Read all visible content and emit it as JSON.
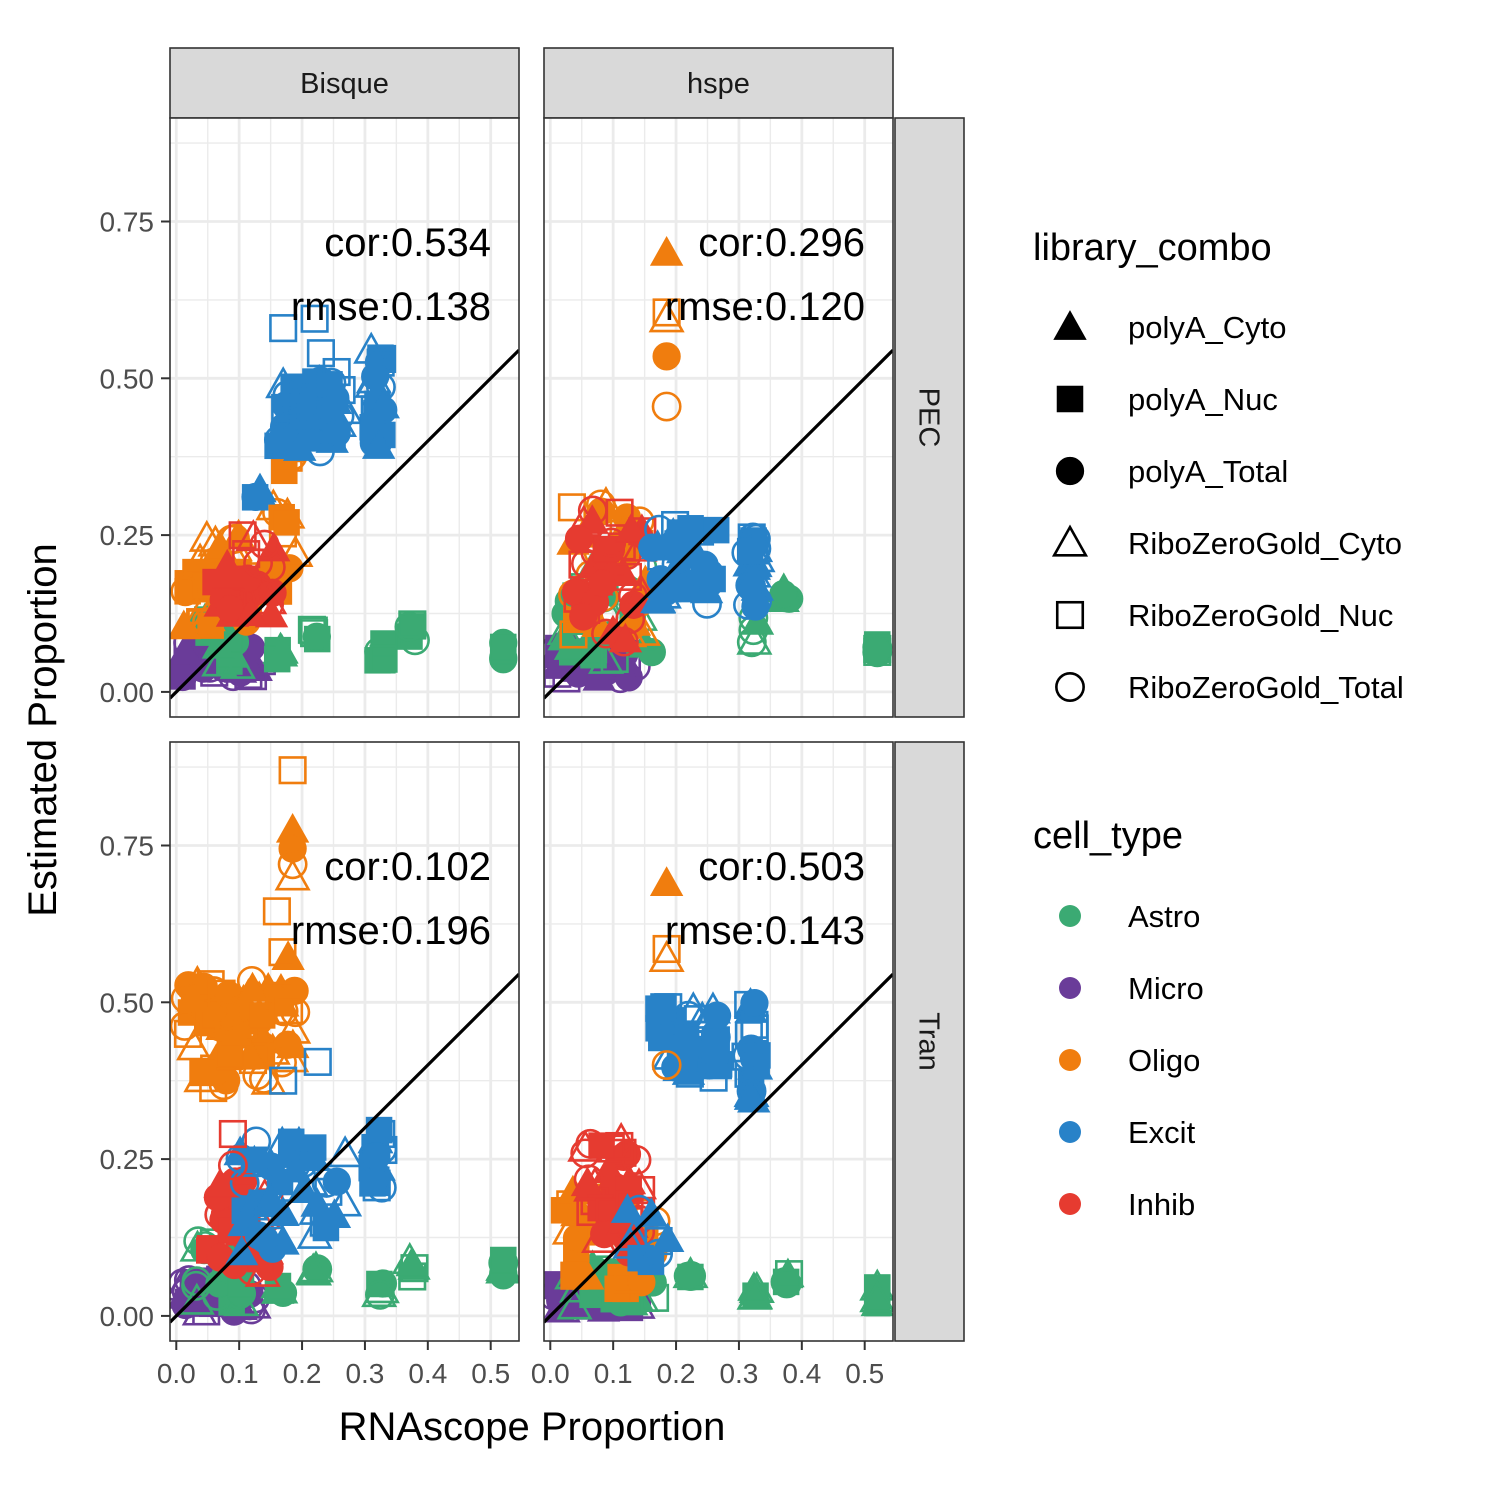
{
  "chart_data": {
    "type": "scatter",
    "xlabel": "RNAscope Proportion",
    "ylabel": "Estimated Proportion",
    "xlim": [
      -0.01,
      0.545
    ],
    "ylim": [
      -0.04,
      0.915
    ],
    "xticks": [
      "0.0",
      "0.1",
      "0.2",
      "0.3",
      "0.4",
      "0.5"
    ],
    "xtick_values": [
      0,
      0.1,
      0.2,
      0.3,
      0.4,
      0.5
    ],
    "yticks": [
      "0.00",
      "0.25",
      "0.50",
      "0.75"
    ],
    "ytick_values": [
      0,
      0.25,
      0.5,
      0.75
    ],
    "reference_line": "y = x",
    "grid": true,
    "facet_columns": [
      "Bisque",
      "hspe"
    ],
    "facet_rows": [
      "PEC",
      "Tran"
    ],
    "legend_placement": "right",
    "legends": {
      "shape": {
        "title": "library_combo",
        "entries": [
          {
            "label": "polyA_Cyto",
            "shape": "triangle",
            "filled": true
          },
          {
            "label": "polyA_Nuc",
            "shape": "square",
            "filled": true
          },
          {
            "label": "polyA_Total",
            "shape": "circle",
            "filled": true
          },
          {
            "label": "RiboZeroGold_Cyto",
            "shape": "triangle",
            "filled": false
          },
          {
            "label": "RiboZeroGold_Nuc",
            "shape": "square",
            "filled": false
          },
          {
            "label": "RiboZeroGold_Total",
            "shape": "circle",
            "filled": false
          }
        ]
      },
      "color": {
        "title": "cell_type",
        "entries": [
          {
            "label": "Astro",
            "color": "#3BAA73"
          },
          {
            "label": "Micro",
            "color": "#6A3C99"
          },
          {
            "label": "Oligo",
            "color": "#F07D0E"
          },
          {
            "label": "Excit",
            "color": "#2882C8"
          },
          {
            "label": "Inhib",
            "color": "#E63B30"
          }
        ]
      }
    },
    "panels": [
      {
        "method": "Bisque",
        "dataset": "PEC",
        "cor": "cor:0.534",
        "rmse": "rmse:0.138",
        "clusters": [
          {
            "cell_type": "Micro",
            "x": [
              0.005,
              0.14
            ],
            "y": [
              0.02,
              0.08
            ],
            "n": 40,
            "seed": 11
          },
          {
            "cell_type": "Astro",
            "x": [
              0.04,
              0.1
            ],
            "y": [
              0.04,
              0.13
            ],
            "n": 22,
            "seed": 12
          },
          {
            "cell_type": "Astro",
            "x": [
              0.16,
              0.17
            ],
            "y": [
              0.04,
              0.07
            ],
            "n": 5,
            "seed": 13
          },
          {
            "cell_type": "Astro",
            "x": [
              0.215,
              0.225
            ],
            "y": [
              0.08,
              0.1
            ],
            "n": 5,
            "seed": 14
          },
          {
            "cell_type": "Astro",
            "x": [
              0.32,
              0.33
            ],
            "y": [
              0.05,
              0.08
            ],
            "n": 5,
            "seed": 15
          },
          {
            "cell_type": "Astro",
            "x": [
              0.37,
              0.38
            ],
            "y": [
              0.08,
              0.11
            ],
            "n": 5,
            "seed": 16
          },
          {
            "cell_type": "Astro",
            "x": [
              0.52,
              0.52
            ],
            "y": [
              0.05,
              0.08
            ],
            "n": 6,
            "seed": 17
          },
          {
            "cell_type": "Oligo",
            "x": [
              0.01,
              0.12
            ],
            "y": [
              0.1,
              0.25
            ],
            "n": 36,
            "seed": 18
          },
          {
            "cell_type": "Oligo",
            "x": [
              0.14,
              0.19
            ],
            "y": [
              0.16,
              0.3
            ],
            "n": 12,
            "seed": 19
          },
          {
            "cell_type": "Oligo",
            "x": [
              0.17,
              0.19
            ],
            "y": [
              0.35,
              0.43
            ],
            "n": 7,
            "seed": 20
          },
          {
            "cell_type": "Inhib",
            "x": [
              0.06,
              0.16
            ],
            "y": [
              0.12,
              0.25
            ],
            "n": 26,
            "seed": 21
          },
          {
            "cell_type": "Excit",
            "x": [
              0.125,
              0.135
            ],
            "y": [
              0.31,
              0.33
            ],
            "n": 4,
            "seed": 22
          },
          {
            "cell_type": "Excit",
            "x": [
              0.16,
              0.27
            ],
            "y": [
              0.38,
              0.5
            ],
            "n": 45,
            "seed": 23
          },
          {
            "cell_type": "Excit",
            "x": [
              0.31,
              0.33
            ],
            "y": [
              0.39,
              0.54
            ],
            "n": 20,
            "seed": 24
          }
        ],
        "points": [
          {
            "cell_type": "Excit",
            "lib": "RiboZeroGold_Nuc",
            "x": 0.17,
            "y": 0.58
          },
          {
            "cell_type": "Excit",
            "lib": "RiboZeroGold_Nuc",
            "x": 0.22,
            "y": 0.595
          },
          {
            "cell_type": "Excit",
            "lib": "RiboZeroGold_Nuc",
            "x": 0.23,
            "y": 0.54
          },
          {
            "cell_type": "Excit",
            "lib": "RiboZeroGold_Nuc",
            "x": 0.255,
            "y": 0.51
          },
          {
            "cell_type": "Excit",
            "lib": "RiboZeroGold_Cyto",
            "x": 0.31,
            "y": 0.545
          },
          {
            "cell_type": "Excit",
            "lib": "RiboZeroGold_Nuc",
            "x": 0.325,
            "y": 0.525
          },
          {
            "cell_type": "Excit",
            "lib": "RiboZeroGold_Cyto",
            "x": 0.17,
            "y": 0.49
          }
        ]
      },
      {
        "method": "hspe",
        "dataset": "PEC",
        "cor": "cor:0.296",
        "rmse": "rmse:0.120",
        "clusters": [
          {
            "cell_type": "Micro",
            "x": [
              0.005,
              0.14
            ],
            "y": [
              0.02,
              0.08
            ],
            "n": 40,
            "seed": 31
          },
          {
            "cell_type": "Astro",
            "x": [
              0.02,
              0.17
            ],
            "y": [
              0.05,
              0.2
            ],
            "n": 30,
            "seed": 32
          },
          {
            "cell_type": "Astro",
            "x": [
              0.32,
              0.33
            ],
            "y": [
              0.07,
              0.13
            ],
            "n": 5,
            "seed": 33
          },
          {
            "cell_type": "Astro",
            "x": [
              0.37,
              0.38
            ],
            "y": [
              0.14,
              0.18
            ],
            "n": 5,
            "seed": 34
          },
          {
            "cell_type": "Astro",
            "x": [
              0.52,
              0.52
            ],
            "y": [
              0.06,
              0.1
            ],
            "n": 6,
            "seed": 35
          },
          {
            "cell_type": "Oligo",
            "x": [
              0.01,
              0.16
            ],
            "y": [
              0.06,
              0.3
            ],
            "n": 32,
            "seed": 36
          },
          {
            "cell_type": "Inhib",
            "x": [
              0.04,
              0.15
            ],
            "y": [
              0.06,
              0.29
            ],
            "n": 40,
            "seed": 37
          },
          {
            "cell_type": "Excit",
            "x": [
              0.16,
              0.27
            ],
            "y": [
              0.14,
              0.27
            ],
            "n": 40,
            "seed": 38
          },
          {
            "cell_type": "Excit",
            "x": [
              0.31,
              0.33
            ],
            "y": [
              0.13,
              0.26
            ],
            "n": 20,
            "seed": 39
          }
        ],
        "points": [
          {
            "cell_type": "Oligo",
            "lib": "polyA_Cyto",
            "x": 0.185,
            "y": 0.7
          },
          {
            "cell_type": "Oligo",
            "lib": "RiboZeroGold_Cyto",
            "x": 0.185,
            "y": 0.595
          },
          {
            "cell_type": "Oligo",
            "lib": "RiboZeroGold_Nuc",
            "x": 0.185,
            "y": 0.605
          },
          {
            "cell_type": "Oligo",
            "lib": "polyA_Total",
            "x": 0.185,
            "y": 0.535
          },
          {
            "cell_type": "Oligo",
            "lib": "RiboZeroGold_Total",
            "x": 0.185,
            "y": 0.455
          }
        ]
      },
      {
        "method": "Bisque",
        "dataset": "Tran",
        "cor": "cor:0.102",
        "rmse": "rmse:0.196",
        "clusters": [
          {
            "cell_type": "Micro",
            "x": [
              0.005,
              0.13
            ],
            "y": [
              0.0,
              0.06
            ],
            "n": 40,
            "seed": 51
          },
          {
            "cell_type": "Astro",
            "x": [
              0.03,
              0.12
            ],
            "y": [
              0.02,
              0.12
            ],
            "n": 24,
            "seed": 52
          },
          {
            "cell_type": "Astro",
            "x": [
              0.16,
              0.17
            ],
            "y": [
              0.02,
              0.06
            ],
            "n": 5,
            "seed": 53
          },
          {
            "cell_type": "Astro",
            "x": [
              0.215,
              0.225
            ],
            "y": [
              0.06,
              0.09
            ],
            "n": 5,
            "seed": 54
          },
          {
            "cell_type": "Astro",
            "x": [
              0.32,
              0.33
            ],
            "y": [
              0.03,
              0.07
            ],
            "n": 5,
            "seed": 55
          },
          {
            "cell_type": "Astro",
            "x": [
              0.37,
              0.38
            ],
            "y": [
              0.06,
              0.09
            ],
            "n": 5,
            "seed": 56
          },
          {
            "cell_type": "Astro",
            "x": [
              0.52,
              0.52
            ],
            "y": [
              0.04,
              0.09
            ],
            "n": 6,
            "seed": 57
          },
          {
            "cell_type": "Oligo",
            "x": [
              0.01,
              0.08
            ],
            "y": [
              0.36,
              0.54
            ],
            "n": 26,
            "seed": 58
          },
          {
            "cell_type": "Oligo",
            "x": [
              0.08,
              0.16
            ],
            "y": [
              0.37,
              0.54
            ],
            "n": 30,
            "seed": 59
          },
          {
            "cell_type": "Oligo",
            "x": [
              0.16,
              0.19
            ],
            "y": [
              0.4,
              0.6
            ],
            "n": 14,
            "seed": 60
          },
          {
            "cell_type": "Inhib",
            "x": [
              0.05,
              0.15
            ],
            "y": [
              0.06,
              0.22
            ],
            "n": 30,
            "seed": 61
          },
          {
            "cell_type": "Excit",
            "x": [
              0.1,
              0.27
            ],
            "y": [
              0.1,
              0.28
            ],
            "n": 45,
            "seed": 62
          },
          {
            "cell_type": "Excit",
            "x": [
              0.31,
              0.33
            ],
            "y": [
              0.2,
              0.3
            ],
            "n": 18,
            "seed": 63
          }
        ],
        "points": [
          {
            "cell_type": "Oligo",
            "lib": "RiboZeroGold_Nuc",
            "x": 0.185,
            "y": 0.87
          },
          {
            "cell_type": "Oligo",
            "lib": "polyA_Cyto",
            "x": 0.185,
            "y": 0.775
          },
          {
            "cell_type": "Oligo",
            "lib": "polyA_Total",
            "x": 0.185,
            "y": 0.745
          },
          {
            "cell_type": "Oligo",
            "lib": "RiboZeroGold_Total",
            "x": 0.185,
            "y": 0.72
          },
          {
            "cell_type": "Oligo",
            "lib": "RiboZeroGold_Cyto",
            "x": 0.185,
            "y": 0.7
          },
          {
            "cell_type": "Oligo",
            "lib": "RiboZeroGold_Nuc",
            "x": 0.16,
            "y": 0.645
          },
          {
            "cell_type": "Inhib",
            "lib": "RiboZeroGold_Nuc",
            "x": 0.09,
            "y": 0.29
          },
          {
            "cell_type": "Inhib",
            "lib": "RiboZeroGold_Total",
            "x": 0.09,
            "y": 0.24
          },
          {
            "cell_type": "Excit",
            "lib": "RiboZeroGold_Nuc",
            "x": 0.17,
            "y": 0.375
          },
          {
            "cell_type": "Excit",
            "lib": "RiboZeroGold_Nuc",
            "x": 0.225,
            "y": 0.405
          }
        ]
      },
      {
        "method": "hspe",
        "dataset": "Tran",
        "cor": "cor:0.503",
        "rmse": "rmse:0.143",
        "clusters": [
          {
            "cell_type": "Micro",
            "x": [
              0.005,
              0.14
            ],
            "y": [
              0.01,
              0.05
            ],
            "n": 38,
            "seed": 71
          },
          {
            "cell_type": "Astro",
            "x": [
              0.03,
              0.17
            ],
            "y": [
              0.01,
              0.08
            ],
            "n": 26,
            "seed": 72
          },
          {
            "cell_type": "Astro",
            "x": [
              0.215,
              0.225
            ],
            "y": [
              0.05,
              0.07
            ],
            "n": 5,
            "seed": 73
          },
          {
            "cell_type": "Astro",
            "x": [
              0.32,
              0.33
            ],
            "y": [
              0.02,
              0.05
            ],
            "n": 5,
            "seed": 74
          },
          {
            "cell_type": "Astro",
            "x": [
              0.37,
              0.38
            ],
            "y": [
              0.05,
              0.07
            ],
            "n": 5,
            "seed": 75
          },
          {
            "cell_type": "Astro",
            "x": [
              0.52,
              0.52
            ],
            "y": [
              0.02,
              0.05
            ],
            "n": 6,
            "seed": 76
          },
          {
            "cell_type": "Oligo",
            "x": [
              0.01,
              0.17
            ],
            "y": [
              0.04,
              0.2
            ],
            "n": 34,
            "seed": 77
          },
          {
            "cell_type": "Inhib",
            "x": [
              0.05,
              0.15
            ],
            "y": [
              0.1,
              0.28
            ],
            "n": 40,
            "seed": 78
          },
          {
            "cell_type": "Excit",
            "x": [
              0.12,
              0.19
            ],
            "y": [
              0.08,
              0.18
            ],
            "n": 10,
            "seed": 79
          },
          {
            "cell_type": "Excit",
            "x": [
              0.17,
              0.27
            ],
            "y": [
              0.37,
              0.5
            ],
            "n": 40,
            "seed": 80
          },
          {
            "cell_type": "Excit",
            "x": [
              0.31,
              0.33
            ],
            "y": [
              0.34,
              0.5
            ],
            "n": 20,
            "seed": 81
          }
        ],
        "points": [
          {
            "cell_type": "Oligo",
            "lib": "polyA_Cyto",
            "x": 0.185,
            "y": 0.69
          },
          {
            "cell_type": "Oligo",
            "lib": "RiboZeroGold_Nuc",
            "x": 0.185,
            "y": 0.585
          },
          {
            "cell_type": "Oligo",
            "lib": "RiboZeroGold_Cyto",
            "x": 0.185,
            "y": 0.57
          },
          {
            "cell_type": "Oligo",
            "lib": "RiboZeroGold_Total",
            "x": 0.185,
            "y": 0.4
          }
        ]
      }
    ]
  },
  "colors": {
    "panel_bg": "#ffffff",
    "grid": "#ebebeb",
    "strip_bg": "#d9d9d9",
    "border": "#333333",
    "reference_line": "#000000"
  }
}
